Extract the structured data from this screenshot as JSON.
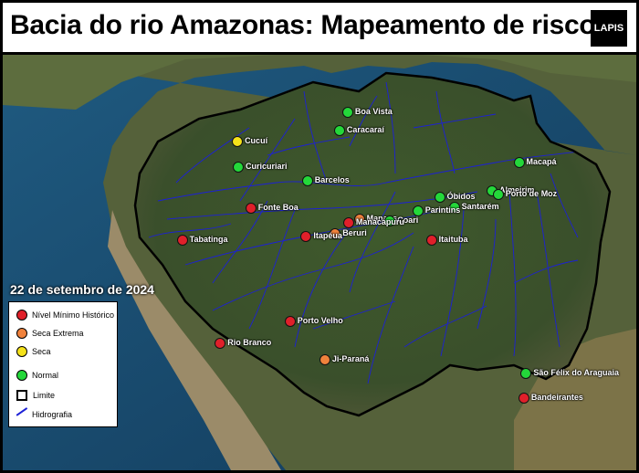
{
  "title": "Bacia do rio Amazonas: Mapeamento de risco",
  "logo_text": "LAPIS",
  "date": "22 de setembro de 2024",
  "colors": {
    "nivel_minimo": "#e0202a",
    "seca_extrema": "#f0823c",
    "seca": "#f5e21a",
    "normal": "#24d83a",
    "hydro": "#1c20d6"
  },
  "legend": [
    {
      "label": "Nível Mínimo Histórico",
      "type": "dot",
      "status": "nivel_minimo"
    },
    {
      "label": "Seca Extrema",
      "type": "dot",
      "status": "seca_extrema"
    },
    {
      "label": "Seca",
      "type": "dot",
      "status": "seca"
    },
    {
      "label": "Normal",
      "type": "dot",
      "status": "normal"
    },
    {
      "label": "Limite",
      "type": "square",
      "status": ""
    },
    {
      "label": "Hidrografia",
      "type": "line",
      "status": ""
    }
  ],
  "stations": [
    {
      "name": "Boa Vista",
      "status": "normal",
      "lon": -60.67,
      "lat": 2.82
    },
    {
      "name": "Caracaraí",
      "status": "normal",
      "lon": -61.13,
      "lat": 1.82
    },
    {
      "name": "Cucuí",
      "status": "seca",
      "lon": -66.85,
      "lat": 1.22
    },
    {
      "name": "Curicuriari",
      "status": "normal",
      "lon": -66.8,
      "lat": -0.2
    },
    {
      "name": "Barcelos",
      "status": "normal",
      "lon": -62.93,
      "lat": -0.97
    },
    {
      "name": "Macapá",
      "status": "normal",
      "lon": -51.07,
      "lat": 0.03
    },
    {
      "name": "Almeirim",
      "status": "normal",
      "lon": -52.58,
      "lat": -1.52
    },
    {
      "name": "Porto de Moz",
      "status": "normal",
      "lon": -52.24,
      "lat": -1.75
    },
    {
      "name": "Óbidos",
      "status": "normal",
      "lon": -55.52,
      "lat": -1.9
    },
    {
      "name": "Santarém",
      "status": "normal",
      "lon": -54.7,
      "lat": -2.44
    },
    {
      "name": "Parintins",
      "status": "normal",
      "lon": -56.74,
      "lat": -2.63
    },
    {
      "name": "Fonte Boa",
      "status": "nivel_minimo",
      "lon": -66.1,
      "lat": -2.51
    },
    {
      "name": "Manaus",
      "status": "seca_extrema",
      "lon": -60.02,
      "lat": -3.1
    },
    {
      "name": "Coari",
      "status": "normal",
      "lon": -58.3,
      "lat": -3.2
    },
    {
      "name": "Manacapuru",
      "status": "nivel_minimo",
      "lon": -60.62,
      "lat": -3.3
    },
    {
      "name": "Beruri",
      "status": "seca_extrema",
      "lon": -61.37,
      "lat": -3.9
    },
    {
      "name": "Itapéua",
      "status": "nivel_minimo",
      "lon": -63.0,
      "lat": -4.05
    },
    {
      "name": "Itaituba",
      "status": "nivel_minimo",
      "lon": -55.98,
      "lat": -4.28
    },
    {
      "name": "Tabatinga",
      "status": "nivel_minimo",
      "lon": -69.94,
      "lat": -4.25
    },
    {
      "name": "Porto Velho",
      "status": "nivel_minimo",
      "lon": -63.9,
      "lat": -8.76
    },
    {
      "name": "Rio Branco",
      "status": "nivel_minimo",
      "lon": -67.81,
      "lat": -9.97
    },
    {
      "name": "Ji-Paraná",
      "status": "seca_extrema",
      "lon": -61.95,
      "lat": -10.88
    },
    {
      "name": "São Félix do Araguaia",
      "status": "normal",
      "lon": -50.67,
      "lat": -11.62
    },
    {
      "name": "Bandeirantes",
      "status": "nivel_minimo",
      "lon": -50.8,
      "lat": -13.0
    }
  ]
}
